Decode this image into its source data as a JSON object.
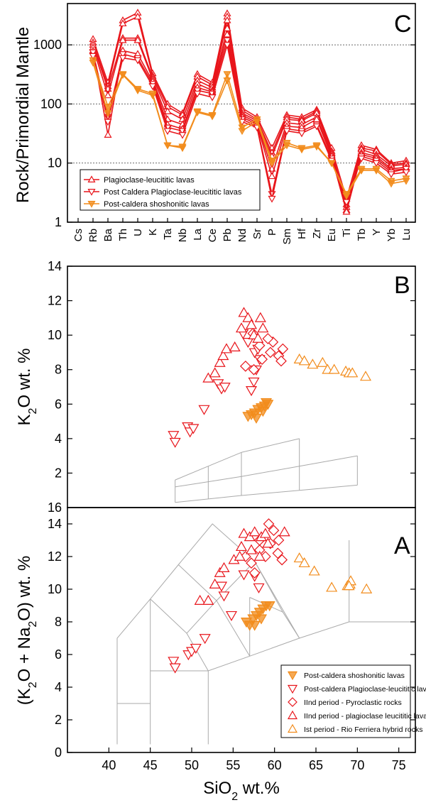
{
  "chart_data": [
    {
      "panel": "C",
      "type": "line",
      "ylabel": "Rock/Primordial Mantle",
      "yscale": "log",
      "ylim": [
        1,
        5000
      ],
      "yticks": [
        1,
        10,
        100,
        1000
      ],
      "gridlines": [
        10,
        100,
        1000
      ],
      "categories": [
        "Cs",
        "Rb",
        "Ba",
        "Th",
        "U",
        "K",
        "Ta",
        "Nb",
        "La",
        "Ce",
        "Pb",
        "Nd",
        "Sr",
        "P",
        "Sm",
        "Hf",
        "Zr",
        "Eu",
        "Ti",
        "Tb",
        "Y",
        "Yb",
        "Lu"
      ],
      "legend_position": "lower-left",
      "legend": [
        {
          "label": "Plagioclase-leucititic lavas",
          "marker": "triangle-up",
          "color": "#e8151b"
        },
        {
          "label": "Post Caldera Plagioclase-leucititic lavas",
          "marker": "triangle-down",
          "color": "#e8151b"
        },
        {
          "label": "Post-caldera shoshonitic lavas",
          "marker": "triangle-down-filled",
          "color": "#f28c1c"
        }
      ],
      "series": [
        {
          "group": 0,
          "color": "#e8151b",
          "marker": "up",
          "values": [
            null,
            1250,
            230,
            2600,
            3500,
            330,
            100,
            70,
            320,
            230,
            3400,
            85,
            60,
            18,
            65,
            60,
            80,
            18,
            2.5,
            20,
            17,
            10,
            11
          ]
        },
        {
          "group": 0,
          "color": "#e8151b",
          "marker": "up",
          "values": [
            null,
            1100,
            200,
            2300,
            3000,
            300,
            90,
            65,
            290,
            210,
            3000,
            78,
            55,
            15,
            60,
            55,
            75,
            16,
            2.0,
            18,
            16,
            9.5,
            10
          ]
        },
        {
          "group": 0,
          "color": "#e8151b",
          "marker": "up",
          "values": [
            null,
            1000,
            180,
            1300,
            1300,
            280,
            75,
            55,
            250,
            190,
            2600,
            70,
            52,
            13,
            55,
            52,
            70,
            15,
            1.8,
            17,
            14,
            9,
            9.5
          ]
        },
        {
          "group": 0,
          "color": "#e8151b",
          "marker": "up",
          "values": [
            null,
            900,
            140,
            1200,
            1200,
            260,
            55,
            45,
            220,
            170,
            1900,
            65,
            48,
            8,
            48,
            45,
            60,
            14,
            1.6,
            15,
            13,
            8,
            8.5
          ]
        },
        {
          "group": 0,
          "color": "#e8151b",
          "marker": "up",
          "values": [
            null,
            800,
            30,
            800,
            700,
            240,
            45,
            38,
            190,
            160,
            1500,
            60,
            45,
            6,
            42,
            40,
            55,
            13,
            1.5,
            14,
            12,
            7.5,
            8
          ]
        },
        {
          "group": 1,
          "color": "#e8151b",
          "marker": "down",
          "values": [
            null,
            750,
            60,
            700,
            600,
            220,
            40,
            35,
            170,
            150,
            1200,
            55,
            42,
            3,
            38,
            35,
            45,
            12,
            2.5,
            13,
            11,
            7,
            8
          ]
        },
        {
          "group": 1,
          "color": "#e8151b",
          "marker": "down",
          "values": [
            null,
            650,
            50,
            600,
            550,
            200,
            35,
            30,
            150,
            130,
            1000,
            50,
            40,
            2.5,
            35,
            32,
            42,
            11,
            2.2,
            12,
            10,
            6.5,
            7
          ]
        },
        {
          "group": 2,
          "color": "#f28c1c",
          "marker": "down-filled",
          "values": [
            null,
            550,
            90,
            320,
            180,
            150,
            20,
            19,
            75,
            65,
            320,
            40,
            55,
            11,
            22,
            18,
            20,
            10,
            3.0,
            8,
            8,
            5,
            5.5
          ]
        },
        {
          "group": 2,
          "color": "#f28c1c",
          "marker": "down-filled",
          "values": [
            null,
            500,
            70,
            310,
            170,
            140,
            20,
            18,
            72,
            62,
            250,
            35,
            50,
            10,
            20,
            17,
            19,
            10,
            2.8,
            7.5,
            7.5,
            4.5,
            5
          ]
        }
      ]
    },
    {
      "panel": "B",
      "type": "scatter",
      "ylabel": "K2O wt. %",
      "xlim": [
        35,
        77
      ],
      "ylim": [
        0,
        14
      ],
      "yticks": [
        2,
        4,
        6,
        8,
        10,
        12,
        14
      ],
      "ytick_labels": [
        "2",
        "4",
        "6",
        "8",
        "10",
        "12",
        "14"
      ],
      "series": [
        {
          "name": "Post-caldera shoshonitic lavas",
          "marker": "down-filled",
          "color": "#f28c1c",
          "points": [
            [
              57.2,
              5.4
            ],
            [
              57.6,
              5.5
            ],
            [
              58,
              5.7
            ],
            [
              58.4,
              5.8
            ],
            [
              58.8,
              5.9
            ],
            [
              59.2,
              6.0
            ],
            [
              57.8,
              5.2
            ],
            [
              58.6,
              5.6
            ],
            [
              56.8,
              5.3
            ],
            [
              59,
              6.1
            ]
          ]
        },
        {
          "name": "Post-caldera Plagioclase-leucititic lavas",
          "marker": "down",
          "color": "#e8151b",
          "points": [
            [
              47.8,
              4.2
            ],
            [
              48,
              3.8
            ],
            [
              49.5,
              4.7
            ],
            [
              49.8,
              4.4
            ],
            [
              50.2,
              4.6
            ],
            [
              51.5,
              5.7
            ],
            [
              53.2,
              7.2
            ],
            [
              53.6,
              6.9
            ],
            [
              54,
              7.0
            ],
            [
              57.2,
              6.8
            ],
            [
              57.5,
              7.3
            ],
            [
              57.8,
              8.0
            ],
            [
              58.2,
              8.6
            ],
            [
              57.6,
              9.0
            ],
            [
              56.8,
              9.6
            ],
            [
              56.2,
              10.1
            ],
            [
              58,
              9.2
            ]
          ]
        },
        {
          "name": "IInd period - Pyroclastic rocks",
          "marker": "diamond",
          "color": "#e8151b",
          "points": [
            [
              56.5,
              8.2
            ],
            [
              57.5,
              8.0
            ],
            [
              58.5,
              8.6
            ],
            [
              59.5,
              9.0
            ],
            [
              59.8,
              9.6
            ],
            [
              60.5,
              8.8
            ],
            [
              60.8,
              8.5
            ],
            [
              61,
              9.2
            ],
            [
              59.2,
              9.8
            ],
            [
              58.2,
              9.4
            ],
            [
              57.4,
              10.1
            ]
          ]
        },
        {
          "name": "IInd period - plagioclase leucititic lavas",
          "marker": "up",
          "color": "#e8151b",
          "points": [
            [
              52,
              7.5
            ],
            [
              52.8,
              7.8
            ],
            [
              53.4,
              8.4
            ],
            [
              53.8,
              8.8
            ],
            [
              54.2,
              9.2
            ],
            [
              55.2,
              9.3
            ],
            [
              56,
              10.4
            ],
            [
              56.3,
              11.3
            ],
            [
              56.8,
              11.0
            ],
            [
              57.2,
              10.6
            ],
            [
              57.5,
              10.0
            ],
            [
              58,
              9.8
            ],
            [
              58.3,
              11.0
            ],
            [
              58.6,
              10.4
            ]
          ]
        },
        {
          "name": "Ist period - Rio Ferriera hybrid rocks",
          "marker": "up",
          "color": "#f28c1c",
          "points": [
            [
              63,
              8.6
            ],
            [
              63.6,
              8.5
            ],
            [
              64.6,
              8.3
            ],
            [
              65.8,
              8.4
            ],
            [
              66.4,
              8.0
            ],
            [
              67.2,
              8.0
            ],
            [
              68.6,
              7.9
            ],
            [
              69,
              7.8
            ],
            [
              69.4,
              7.8
            ],
            [
              71,
              7.6
            ]
          ]
        }
      ]
    },
    {
      "panel": "A",
      "type": "scatter",
      "xlabel": "SiO2 wt.%",
      "ylabel": "(K2O + Na2O) wt. %",
      "xlim": [
        35,
        77
      ],
      "ylim": [
        0,
        15
      ],
      "xticks": [
        40,
        45,
        50,
        55,
        60,
        65,
        70,
        75
      ],
      "yticks": [
        0,
        2,
        4,
        6,
        8,
        10,
        12,
        14
      ],
      "legend_position": "lower-right",
      "series": [
        {
          "name": "Post-caldera shoshonitic lavas",
          "marker": "down-filled",
          "color": "#f28c1c",
          "points": [
            [
              56.6,
              8.0
            ],
            [
              57,
              7.8
            ],
            [
              57.4,
              8.2
            ],
            [
              57.8,
              8.4
            ],
            [
              58.2,
              8.6
            ],
            [
              58.6,
              8.8
            ],
            [
              59,
              9.0
            ],
            [
              57.6,
              7.8
            ],
            [
              58.4,
              8.2
            ],
            [
              59.4,
              9.0
            ]
          ]
        },
        {
          "name": "Post-caldera Plagioclase-leucititic lavas",
          "marker": "down",
          "color": "#e8151b",
          "points": [
            [
              47.8,
              5.6
            ],
            [
              48,
              5.2
            ],
            [
              49.6,
              6.0
            ],
            [
              50,
              6.2
            ],
            [
              50.5,
              6.4
            ],
            [
              51.6,
              7.0
            ],
            [
              54.8,
              8.4
            ],
            [
              56.3,
              10.9
            ],
            [
              57.6,
              10.8
            ],
            [
              58.1,
              10.1
            ],
            [
              53.6,
              10.2
            ],
            [
              53.9,
              9.6
            ]
          ]
        },
        {
          "name": "IInd period - Pyroclastic rocks",
          "marker": "diamond",
          "color": "#e8151b",
          "points": [
            [
              56.5,
              12.0
            ],
            [
              57.2,
              11.6
            ],
            [
              58.2,
              12.4
            ],
            [
              58.9,
              12.0
            ],
            [
              59.5,
              12.8
            ],
            [
              59.9,
              13.6
            ],
            [
              60.4,
              12.2
            ],
            [
              60.9,
              11.8
            ],
            [
              59.3,
              14.0
            ],
            [
              58.2,
              13.0
            ],
            [
              57.6,
              11.0
            ],
            [
              60.5,
              13.0
            ]
          ]
        },
        {
          "name": "IInd period - plagioclase leucititic lavas",
          "marker": "up",
          "color": "#e8151b",
          "points": [
            [
              51,
              9.3
            ],
            [
              52,
              9.3
            ],
            [
              52.8,
              10.3
            ],
            [
              53.4,
              11.0
            ],
            [
              53.9,
              11.3
            ],
            [
              55.1,
              11.8
            ],
            [
              56,
              12.6
            ],
            [
              56.3,
              13.4
            ],
            [
              57,
              13.2
            ],
            [
              57.6,
              13.5
            ],
            [
              58.4,
              13.2
            ],
            [
              58.9,
              13.4
            ],
            [
              61.2,
              13.5
            ],
            [
              55.8,
              12.0
            ],
            [
              57.2,
              12.4
            ],
            [
              58.2,
              12.0
            ],
            [
              59.2,
              12.8
            ]
          ]
        },
        {
          "name": "Ist period - Rio Ferriera hybrid rocks",
          "marker": "up",
          "color": "#f28c1c",
          "points": [
            [
              63,
              11.9
            ],
            [
              63.6,
              11.6
            ],
            [
              64.8,
              11.1
            ],
            [
              66.9,
              10.1
            ],
            [
              68.8,
              10.2
            ],
            [
              69.1,
              10.3
            ],
            [
              69.2,
              10.5
            ],
            [
              69,
              10.2
            ],
            [
              71.1,
              10.0
            ]
          ]
        }
      ]
    }
  ],
  "labels": {
    "panel_c": "C",
    "panel_b": "B",
    "panel_a": "A",
    "c_ylabel": "Rock/Primordial Mantle",
    "b_ylabel_k": "K",
    "b_ylabel_sub": "2",
    "b_ylabel_rest": "O  wt. %",
    "a_ylabel_pre": "(K",
    "a_ylabel_sub1": "2",
    "a_ylabel_mid": "O + Na",
    "a_ylabel_sub2": "2",
    "a_ylabel_post": "O)  wt. %",
    "x_label_pre": "SiO",
    "x_label_sub": "2",
    "x_label_post": "  wt.%",
    "b_bottom_tick": "16"
  }
}
